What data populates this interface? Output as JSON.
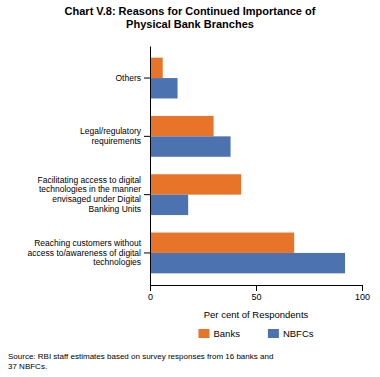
{
  "chart_data": {
    "type": "bar",
    "orientation": "horizontal",
    "title": "Chart V.8: Reasons for Continued Importance of\nPhysical Bank Branches",
    "categories": [
      "Reaching customers without\naccess to/awareness of digital\ntechnologies",
      "Facilitating access to digital\ntechnologies in the manner\nenvisaged under Digital\nBanking Units",
      "Legal/regulatory\nrequirements",
      "Others"
    ],
    "series": [
      {
        "name": "Banks",
        "color": "#E8742A",
        "values": [
          68,
          43,
          30,
          6
        ]
      },
      {
        "name": "NBFCs",
        "color": "#4C72B0",
        "values": [
          92,
          18,
          38,
          13
        ]
      }
    ],
    "xlabel": "Per cent of Respondents",
    "xlim": [
      0,
      100
    ],
    "xticks": [
      0,
      50,
      100
    ],
    "grid": false,
    "legend": "bottom",
    "annotations": [
      "Source: RBI staff estimates based on survey responses from 16 banks and\n37 NBFCs."
    ]
  }
}
